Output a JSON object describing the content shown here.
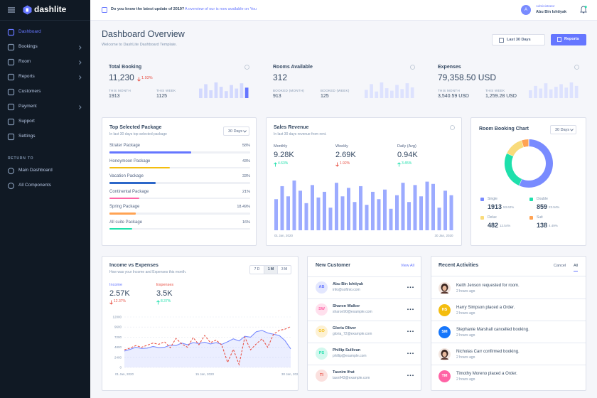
{
  "brand": "dashlite",
  "sidebar": {
    "menu": [
      {
        "label": "Dashboard",
        "active": true
      },
      {
        "label": "Bookings",
        "submenu": true
      },
      {
        "label": "Room",
        "submenu": true
      },
      {
        "label": "Reports",
        "submenu": true
      },
      {
        "label": "Customers"
      },
      {
        "label": "Payment",
        "submenu": true
      },
      {
        "label": "Support"
      },
      {
        "label": "Settings"
      }
    ],
    "section": "RETURN TO",
    "links": [
      "Main Dashboard",
      "All Components"
    ]
  },
  "topbar": {
    "notice": "Do you know the latest update of 2019?",
    "notice_link": "A overview of our is now available on You",
    "role": "Administrator",
    "user": "Abu Bin Ishtiyak",
    "avatar": "A"
  },
  "header": {
    "title": "Dashboard Overview",
    "subtitle": "Welcome to DashLite Dashboard Template.",
    "range_button": "Last 30 Days",
    "reports_button": "Reports"
  },
  "stats": [
    {
      "title": "Total Booking",
      "value": "11,230",
      "change": "1.93%",
      "trend": "down",
      "items": [
        {
          "label": "THIS MONTH",
          "value": "1913"
        },
        {
          "label": "THIS WEEK",
          "value": "1125"
        }
      ],
      "bars": [
        55,
        80,
        45,
        90,
        65,
        40,
        75,
        55,
        85,
        60
      ],
      "color": "#d3d9fe",
      "highlight_color": "#6576ff"
    },
    {
      "title": "Rooms Available",
      "value": "312",
      "items": [
        {
          "label": "BOOKED (MONTH)",
          "value": "913"
        },
        {
          "label": "BOOKED (WEEK)",
          "value": "125"
        }
      ],
      "bars": [
        50,
        85,
        40,
        95,
        60,
        45,
        80,
        55,
        90,
        65
      ],
      "color": "#dde2fe"
    },
    {
      "title": "Expenses",
      "value": "79,358.50 USD",
      "items": [
        {
          "label": "THIS MONTH",
          "value": "3,540.59 USD"
        },
        {
          "label": "THIS WEEK",
          "value": "1,259.28 USD"
        }
      ],
      "bars": [
        45,
        70,
        55,
        85,
        50,
        65,
        80,
        60,
        90,
        70
      ],
      "color": "#dde2fe"
    }
  ],
  "packages": {
    "title": "Top Selected Package",
    "subtitle": "In last 30 days top selected package",
    "filter": "30 Days",
    "items": [
      {
        "name": "Strater Package",
        "value": 58,
        "label": "58%",
        "color": "#6576ff"
      },
      {
        "name": "Honeymoon Package",
        "value": 43,
        "label": "43%",
        "color": "#f4bd0e"
      },
      {
        "name": "Vacation Package",
        "value": 33,
        "label": "33%",
        "color": "#2c67c9"
      },
      {
        "name": "Continental Package",
        "value": 21,
        "label": "21%",
        "color": "#ff63a5"
      },
      {
        "name": "Spring Package",
        "value": 18.49,
        "label": "18.49%",
        "color": "#ffa353"
      },
      {
        "name": "All suite Package",
        "value": 16,
        "label": "16%",
        "color": "#1ee0ac"
      }
    ]
  },
  "sales": {
    "title": "Sales Revenue",
    "subtitle": "In last 30 days revenue from rent.",
    "metrics": [
      {
        "label": "Monthly",
        "value": "9.28K",
        "change": "4.63%",
        "trend": "up"
      },
      {
        "label": "Weekly",
        "value": "2.69K",
        "change": "1.92%",
        "trend": "down"
      },
      {
        "label": "Daily (Avg)",
        "value": "0.94K",
        "change": "3.45%",
        "trend": "up"
      }
    ],
    "color": "#9cabff",
    "values": [
      55,
      78,
      60,
      88,
      70,
      48,
      80,
      58,
      68,
      40,
      84,
      60,
      75,
      50,
      78,
      45,
      68,
      55,
      72,
      38,
      62,
      84,
      50,
      80,
      60,
      86,
      82,
      40,
      70,
      62
    ],
    "categories": [
      "01 Jan, 2020",
      null,
      null,
      null,
      null,
      null,
      null,
      null,
      null,
      null,
      null,
      null,
      null,
      null,
      null,
      null,
      null,
      null,
      null,
      null,
      null,
      null,
      null,
      null,
      null,
      null,
      null,
      null,
      null,
      "30 Jan, 2020"
    ]
  },
  "rooms": {
    "title": "Room Booking Chart",
    "filter": "30 Days",
    "items": [
      {
        "name": "Single",
        "count": "1913",
        "value": 53.62,
        "label": "53.62%",
        "color": "#798bff"
      },
      {
        "name": "Double",
        "count": "859",
        "value": 23.94,
        "label": "23.94%",
        "color": "#1ee0ac"
      },
      {
        "name": "Delux",
        "count": "482",
        "value": 12.54,
        "label": "12.54%",
        "color": "#f9db7b"
      },
      {
        "name": "Suit",
        "count": "138",
        "value": 4.49,
        "label": "4.49%",
        "color": "#ffa353"
      }
    ]
  },
  "income": {
    "title": "Income vs Expenses",
    "subtitle": "How was your Income and Expenses this month.",
    "tabs": [
      "7 D",
      "1 M",
      "3 M"
    ],
    "active_tab": 1,
    "metrics": [
      {
        "label": "Income",
        "value": "2.57K",
        "change": "12.37%",
        "trend": "down",
        "color": "#6576ff"
      },
      {
        "label": "Expenses",
        "value": "3.5K",
        "change": "8.37%",
        "trend": "up",
        "color": "#e85347"
      }
    ],
    "chart": {
      "type": "line",
      "ylim": [
        0,
        12000
      ],
      "yticks": [
        0,
        2400,
        4800,
        7200,
        9600,
        12000
      ],
      "grid": true,
      "categories": [
        "01 Jan, 2020",
        null,
        null,
        null,
        null,
        null,
        null,
        null,
        null,
        null,
        null,
        null,
        null,
        null,
        "15 Jan, 2020",
        null,
        null,
        null,
        null,
        null,
        null,
        null,
        null,
        null,
        null,
        null,
        null,
        null,
        null,
        "30 Jan, 2020"
      ],
      "series": [
        {
          "color": "#798bff",
          "area": true,
          "values": [
            3900,
            4300,
            4800,
            4500,
            4600,
            5000,
            4700,
            4800,
            5300,
            5200,
            5800,
            5400,
            5900,
            5700,
            6000,
            5600,
            5900,
            5500,
            6100,
            6800,
            6300,
            7400,
            7200,
            8500,
            8800,
            8200,
            7900,
            7600,
            6400,
            4400
          ]
        },
        {
          "color": "#e85347",
          "dashed": true,
          "values": [
            4200,
            4600,
            5200,
            4800,
            5300,
            5800,
            5500,
            6100,
            4700,
            6900,
            5600,
            4800,
            7100,
            5400,
            7600,
            5900,
            6500,
            5300,
            1200,
            4300,
            700,
            7200,
            4200,
            5600,
            6800,
            4800,
            7900,
            8800,
            9100,
            9700
          ]
        }
      ]
    }
  },
  "customers": {
    "title": "New Customer",
    "link": "View All",
    "items": [
      {
        "initials": "AB",
        "name": "Abu Bin Ishtiyak",
        "email": "info@softnio.com",
        "bg": "#e3e7fe",
        "fg": "#6576ff"
      },
      {
        "initials": "SW",
        "name": "Sharon Walker",
        "email": "sharon90@example.com",
        "bg": "#ffe0ed",
        "fg": "#ff63a5"
      },
      {
        "initials": "GO",
        "name": "Gloria Oliver",
        "email": "gloria_72@example.com",
        "bg": "#fdf1d3",
        "fg": "#f4bd0e"
      },
      {
        "initials": "PS",
        "name": "Phillip Sullivan",
        "email": "phillip@example.com",
        "bg": "#d2f8ee",
        "fg": "#1ee0ac"
      },
      {
        "initials": "TI",
        "name": "Tasnim Ifrat",
        "email": "tasnif43@example.com",
        "bg": "#fbe0de",
        "fg": "#e85347"
      }
    ]
  },
  "activities": {
    "title": "Recent Activities",
    "tabs": [
      "Cancel",
      "All"
    ],
    "active_tab": 1,
    "items": [
      {
        "text": "Keith Jenson requested for room.",
        "time": "2 hours ago"
      },
      {
        "initials": "HS",
        "bg": "#f4bd0e",
        "text": "Harry Simpson placed a Order.",
        "time": "2 hours ago"
      },
      {
        "initials": "SM",
        "bg": "#1676fb",
        "text": "Stephanie Marshall cancelled booking.",
        "time": "2 hours ago"
      },
      {
        "text": "Nicholas Carr confirmed booking.",
        "time": "2 hours ago"
      },
      {
        "initials": "TM",
        "bg": "#ff63a5",
        "text": "Timothy Moreno placed a Order.",
        "time": "2 hours ago"
      }
    ]
  }
}
